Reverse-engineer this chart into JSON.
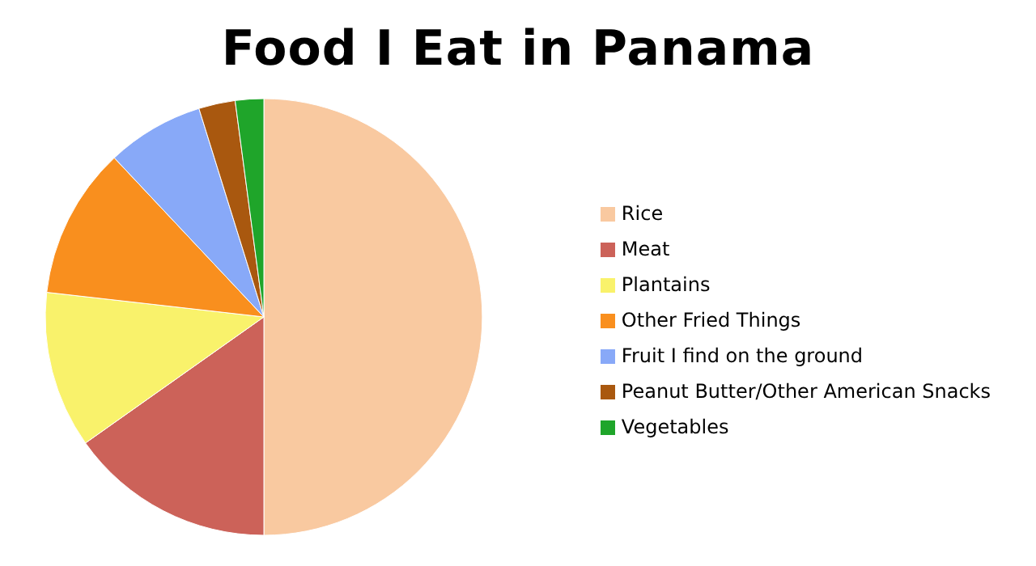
{
  "chart_data": {
    "type": "pie",
    "title": "Food I Eat in Panama",
    "categories": [
      "Rice",
      "Meat",
      "Plantains",
      "Other Fried Things",
      "Fruit I find on the ground",
      "Peanut Butter/Other American Snacks",
      "Vegetables"
    ],
    "values": [
      50,
      15.2,
      11.6,
      11.2,
      7.2,
      2.7,
      2.1
    ],
    "colors": [
      "#f9c9a0",
      "#cc6259",
      "#f9f26b",
      "#f98f1e",
      "#88a9f8",
      "#a9580f",
      "#1fa52a"
    ],
    "legend": "right"
  }
}
